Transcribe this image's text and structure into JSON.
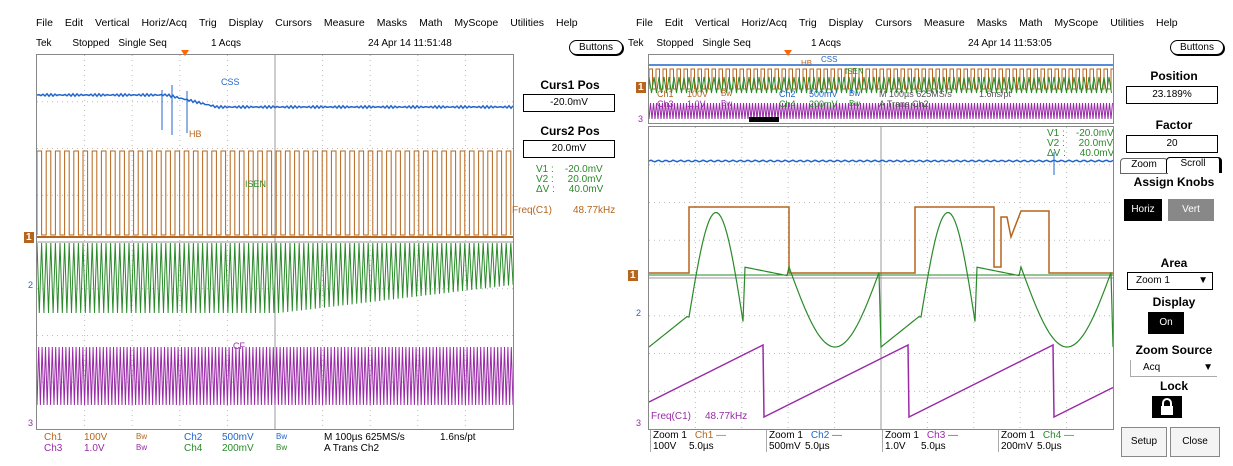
{
  "left": {
    "menu": [
      "File",
      "Edit",
      "Vertical",
      "Horiz/Acq",
      "Trig",
      "Display",
      "Cursors",
      "Measure",
      "Masks",
      "Math",
      "MyScope",
      "Utilities",
      "Help"
    ],
    "status": {
      "brand": "Tek",
      "state": "Stopped",
      "mode": "Single Seq",
      "acqs": "1 Acqs",
      "datetime": "24 Apr 14 11:51:48"
    },
    "buttons_label": "Buttons",
    "labels": {
      "css": "CSS",
      "hb": "HB",
      "isen": "ISEN",
      "cf": "CF"
    },
    "curs1_title": "Curs1 Pos",
    "curs1_value": "-20.0mV",
    "curs2_title": "Curs2 Pos",
    "curs2_value": "20.0mV",
    "readout": {
      "v1": "V1 :    -20.0mV",
      "v2": "V2 :     20.0mV",
      "dv": "ΔV :     40.0mV"
    },
    "freq_label": "Freq(C1)",
    "freq_value": "48.77kHz",
    "bottom": {
      "ch1": "Ch1",
      "ch1_v": "100V",
      "ch3": "Ch3",
      "ch3_v": "1.0V",
      "bw": "Bw",
      "ch2": "Ch2",
      "ch2_v": "500mV",
      "ch4": "Ch4",
      "ch4_v": "200mV",
      "horiz": "M 100µs 625MS/s",
      "trig": "A  Trans    Ch2",
      "res": "1.6ns/pt"
    },
    "markers": {
      "m1": "1",
      "m2": "2",
      "m3": "3"
    }
  },
  "right": {
    "menu": [
      "File",
      "Edit",
      "Vertical",
      "Horiz/Acq",
      "Trig",
      "Display",
      "Cursors",
      "Measure",
      "Masks",
      "Math",
      "MyScope",
      "Utilities",
      "Help"
    ],
    "status": {
      "brand": "Tek",
      "state": "Stopped",
      "mode": "Single Seq",
      "acqs": "1 Acqs",
      "datetime": "24 Apr 14 11:53:05"
    },
    "buttons_label": "Buttons",
    "position_title": "Position",
    "position_value": "23.189%",
    "factor_title": "Factor",
    "factor_value": "20",
    "zoom_tab": "Zoom",
    "scroll_tab": "Scroll",
    "assign_title": "Assign Knobs",
    "horiz_btn": "Horiz",
    "vert_btn": "Vert",
    "area_title": "Area",
    "area_value": "Zoom 1",
    "display_title": "Display",
    "display_value": "On",
    "zoomsrc_title": "Zoom Source",
    "zoomsrc_value": "Acq",
    "lock_title": "Lock",
    "setup_btn": "Setup",
    "close_btn": "Close",
    "labels": {
      "css": "CSS",
      "isen": "ISEN",
      "hb": "HB",
      "freq": "Freq(C1)",
      "freqv": "48.77kHz"
    },
    "readout": {
      "v1": "V1 :    -20.0mV",
      "v2": "V2 :     20.0mV",
      "dv": "ΔV :     40.0mV"
    },
    "bottom": [
      {
        "z": "Zoom 1",
        "ch": "Ch1 —",
        "v": "100V",
        "t": "5.0µs"
      },
      {
        "z": "Zoom 1",
        "ch": "Ch2 —",
        "v": "500mV",
        "t": "5.0µs"
      },
      {
        "z": "Zoom 1",
        "ch": "Ch3 —",
        "v": "1.0V",
        "t": "5.0µs"
      },
      {
        "z": "Zoom 1",
        "ch": "Ch4 —",
        "v": "200mV",
        "t": "5.0µs"
      }
    ],
    "overview": {
      "ch1": "Ch1",
      "ch1v": "100V",
      "ch3": "Ch3",
      "ch3v": "1.0V",
      "bw": "Bw",
      "ch2": "Ch2",
      "ch2v": "500mV",
      "ch4": "Ch4",
      "ch4v": "200mV",
      "trig": "A  Trans    Ch2",
      "horiz": "M 100µs 625MS/s",
      "res": "1.6ns/pt"
    },
    "markers": {
      "m1": "1",
      "m2": "2",
      "m3": "3"
    }
  },
  "colors": {
    "ch1": "#b5651d",
    "ch2": "#2266cc",
    "ch3": "#9a2aa8",
    "ch4": "#2a8a2a"
  }
}
